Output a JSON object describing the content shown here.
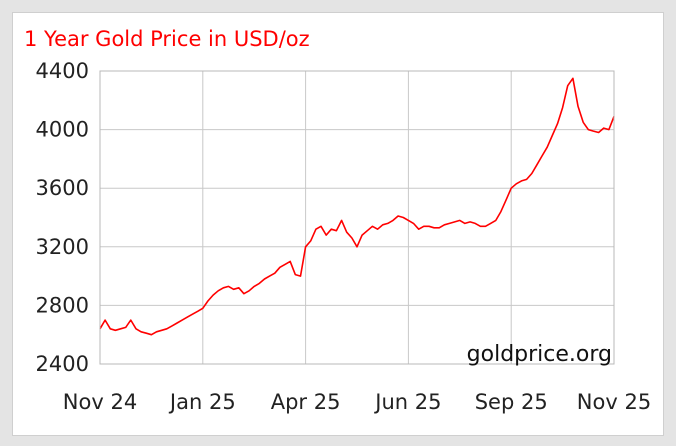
{
  "chart_data": {
    "type": "line",
    "title": "1 Year Gold Price in USD/oz",
    "xlabel": "",
    "ylabel": "",
    "x_ticks": [
      "Nov 24",
      "Jan 25",
      "Apr 25",
      "Jun 25",
      "Sep 25",
      "Nov 25"
    ],
    "y_ticks": [
      2400,
      2800,
      3200,
      3600,
      4000,
      4400
    ],
    "ylim": [
      2400,
      4400
    ],
    "grid": true,
    "watermark": "goldprice.org",
    "line_color": "#ff0000",
    "series": [
      {
        "x": [
          0,
          1,
          2,
          3,
          4,
          5,
          6,
          7,
          8,
          9,
          10,
          11,
          12,
          13,
          14,
          15,
          16,
          17,
          18,
          19,
          20,
          21,
          22,
          23,
          24,
          25,
          26,
          27,
          28,
          29,
          30,
          31,
          32,
          33,
          34,
          35,
          36,
          37,
          38,
          39,
          40,
          41,
          42,
          43,
          44,
          45,
          46,
          47,
          48,
          49,
          50,
          51,
          52,
          53,
          54,
          55,
          56,
          57,
          58,
          59,
          60,
          61,
          62,
          63,
          64,
          65,
          66,
          67,
          68,
          69,
          70,
          71,
          72,
          73,
          74,
          75,
          76,
          77,
          78,
          79,
          80,
          81,
          82,
          83,
          84,
          85,
          86,
          87,
          88,
          89,
          90,
          91,
          92,
          93,
          94,
          95,
          96,
          97,
          98,
          99,
          100
        ],
        "values": [
          2640,
          2700,
          2640,
          2630,
          2640,
          2650,
          2700,
          2640,
          2620,
          2610,
          2600,
          2620,
          2630,
          2640,
          2660,
          2680,
          2700,
          2720,
          2740,
          2760,
          2780,
          2830,
          2870,
          2900,
          2920,
          2930,
          2910,
          2920,
          2880,
          2900,
          2930,
          2950,
          2980,
          3000,
          3020,
          3060,
          3080,
          3100,
          3010,
          3000,
          3200,
          3240,
          3320,
          3340,
          3280,
          3320,
          3310,
          3380,
          3300,
          3260,
          3200,
          3280,
          3310,
          3340,
          3320,
          3350,
          3360,
          3380,
          3410,
          3400,
          3380,
          3360,
          3320,
          3340,
          3340,
          3330,
          3330,
          3350,
          3360,
          3370,
          3380,
          3360,
          3370,
          3360,
          3340,
          3340,
          3360,
          3380,
          3440,
          3520,
          3600,
          3630,
          3650,
          3660,
          3700,
          3760,
          3820,
          3880,
          3960,
          4040,
          4150,
          4300,
          4350,
          4160,
          4050,
          4000,
          3990,
          3980,
          4010,
          4000,
          4090
        ]
      }
    ]
  }
}
